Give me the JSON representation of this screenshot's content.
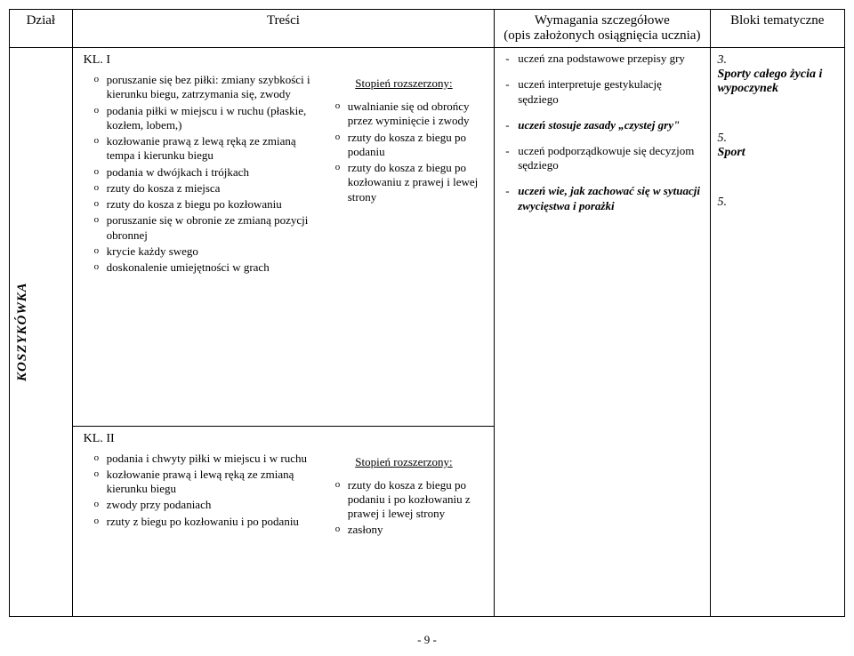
{
  "headers": {
    "dzial": "Dział",
    "tresci": "Treści",
    "wymagania_line1": "Wymagania szczegółowe",
    "wymagania_line2": "(opis założonych osiągnięcia ucznia)",
    "bloki": "Bloki tematyczne"
  },
  "side_label": "KOSZYKÓWKA",
  "kl1": {
    "label": "KL. I",
    "left": [
      "poruszanie się bez piłki: zmiany szybkości i kierunku biegu, zatrzymania się, zwody",
      "podania piłki w miejscu i w ruchu (płaskie, kozłem, lobem,)",
      "kozłowanie prawą z lewą ręką ze zmianą tempa  i kierunku biegu",
      "podania w dwójkach i trójkach",
      "rzuty do kosza z miejsca",
      "rzuty do kosza z biegu po kozłowaniu",
      "poruszanie się w obronie ze zmianą pozycji obronnej",
      "krycie każdy swego",
      "doskonalenie umiejętności w grach"
    ],
    "ext_title": "Stopień rozszerzony:",
    "right": [
      "uwalnianie się od obrońcy przez wyminięcie i zwody",
      "rzuty do kosza z biegu po podaniu",
      "rzuty do kosza z biegu po kozłowaniu z prawej i lewej strony"
    ]
  },
  "kl2": {
    "label": "KL. II",
    "left": [
      "podania i chwyty piłki w miejscu i w ruchu",
      "kozłowanie prawą i lewą ręką ze zmianą kierunku biegu",
      "zwody przy podaniach",
      "rzuty z biegu po kozłowaniu i po podaniu"
    ],
    "ext_title": "Stopień rozszerzony:",
    "right": [
      "rzuty do kosza z biegu po podaniu i po kozłowaniu z prawej i lewej strony",
      "zasłony"
    ]
  },
  "wymagania": [
    {
      "text": "uczeń zna podstawowe przepisy gry",
      "style": "plain"
    },
    {
      "text": "uczeń interpretuje gestykulację sędziego",
      "style": "plain"
    },
    {
      "text": "uczeń stosuje zasady „czystej gry\"",
      "style": "bolditalic"
    },
    {
      "text": "uczeń podporządkowuje się decyzjom sędziego",
      "style": "plain-nodash"
    },
    {
      "text": "uczeń wie, jak zachować się w sytuacji zwycięstwa i porażki",
      "style": "bolditalic-nodash"
    }
  ],
  "bloki": [
    {
      "num": "3.",
      "label": "Sporty całego życia i wypoczynek"
    },
    {
      "num": "5.",
      "label": "Sport"
    },
    {
      "num": "5.",
      "label": ""
    }
  ],
  "page_number": "- 9 -"
}
